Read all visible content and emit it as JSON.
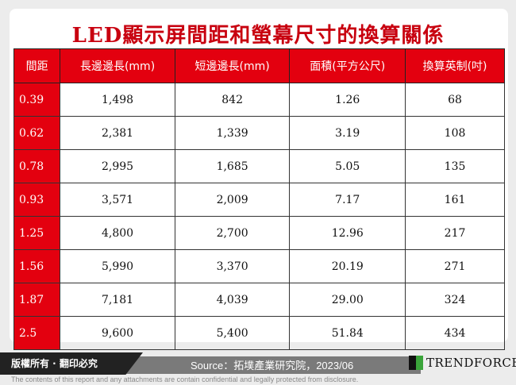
{
  "title": "LED顯示屏間距和螢幕尺寸的換算關係",
  "headers": [
    "間距",
    "長邊邊長(mm)",
    "短邊邊長(mm)",
    "面積(平方公尺)",
    "換算英制(吋)"
  ],
  "rows": [
    [
      "0.39",
      "1,498",
      "842",
      "1.26",
      "68"
    ],
    [
      "0.62",
      "2,381",
      "1,339",
      "3.19",
      "108"
    ],
    [
      "0.78",
      "2,995",
      "1,685",
      "5.05",
      "135"
    ],
    [
      "0.93",
      "3,571",
      "2,009",
      "7.17",
      "161"
    ],
    [
      "1.25",
      "4,800",
      "2,700",
      "12.96",
      "217"
    ],
    [
      "1.56",
      "5,990",
      "3,370",
      "20.19",
      "271"
    ],
    [
      "1.87",
      "7,181",
      "4,039",
      "29.00",
      "324"
    ],
    [
      "2.5",
      "9,600",
      "5,400",
      "51.84",
      "434"
    ]
  ],
  "footer": {
    "copyright": "版權所有 · 翻印必究",
    "source": "Source：拓墣產業研究院，2023/06",
    "logo": "TRENDFORCE",
    "disclaimer": "The contents of this report and any attachments are contain confidential and legally protected from disclosure."
  }
}
